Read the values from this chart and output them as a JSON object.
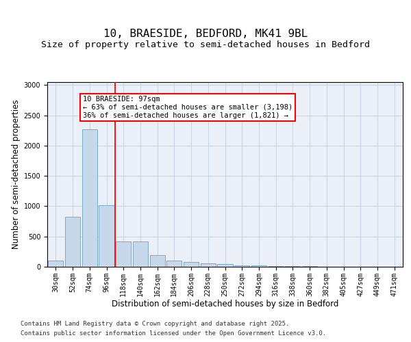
{
  "title_line1": "10, BRAESIDE, BEDFORD, MK41 9BL",
  "title_line2": "Size of property relative to semi-detached houses in Bedford",
  "xlabel": "Distribution of semi-detached houses by size in Bedford",
  "ylabel": "Number of semi-detached properties",
  "categories": [
    "30sqm",
    "52sqm",
    "74sqm",
    "96sqm",
    "118sqm",
    "140sqm",
    "162sqm",
    "184sqm",
    "206sqm",
    "228sqm",
    "250sqm",
    "272sqm",
    "294sqm",
    "316sqm",
    "338sqm",
    "360sqm",
    "382sqm",
    "405sqm",
    "427sqm",
    "449sqm",
    "471sqm"
  ],
  "values": [
    100,
    830,
    2270,
    1020,
    420,
    420,
    190,
    100,
    80,
    60,
    45,
    25,
    18,
    15,
    10,
    8,
    5,
    3,
    2,
    1,
    1
  ],
  "bar_color": "#C8D8EB",
  "bar_edge_color": "#7AAAC8",
  "bar_edge_width": 0.7,
  "grid_color": "#C8D4E4",
  "bg_color": "#EBF0F8",
  "annotation_text": "10 BRAESIDE: 97sqm\n← 63% of semi-detached houses are smaller (3,198)\n36% of semi-detached houses are larger (1,821) →",
  "red_line_x": 3.5,
  "ylim": [
    0,
    3050
  ],
  "yticks": [
    0,
    500,
    1000,
    1500,
    2000,
    2500,
    3000
  ],
  "footer_line1": "Contains HM Land Registry data © Crown copyright and database right 2025.",
  "footer_line2": "Contains public sector information licensed under the Open Government Licence v3.0.",
  "title_fontsize": 11.5,
  "subtitle_fontsize": 9.5,
  "axis_label_fontsize": 8.5,
  "tick_fontsize": 7,
  "footer_fontsize": 6.5,
  "annotation_fontsize": 7.5
}
